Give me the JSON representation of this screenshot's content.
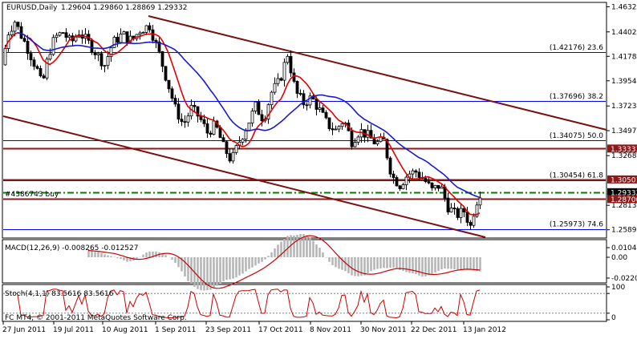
{
  "header": {
    "symbol": "EURUSD,Daily",
    "ohlc": "1.29604 1.29860 1.28869 1.29332"
  },
  "fib_labels": [
    {
      "text": "(1.42176) 23.6",
      "price": 1.4218
    },
    {
      "text": "(1.37696) 38.2",
      "price": 1.377
    },
    {
      "text": "(1.34075) 50.0",
      "price": 1.3408
    },
    {
      "text": "(1.30454) 61.8",
      "price": 1.3045
    },
    {
      "text": "(1.25973) 74.6",
      "price": 1.2597
    }
  ],
  "order_label": "#4386743 buy",
  "price_axis": {
    "ticks": [
      "1.46323",
      "1.44020",
      "1.41780",
      "1.39540",
      "1.37230",
      "1.34970",
      "1.32680",
      "1.28130",
      "1.25890"
    ],
    "tick_prices": [
      1.46323,
      1.4402,
      1.4178,
      1.3954,
      1.3723,
      1.3497,
      1.3268,
      1.2813,
      1.2589
    ],
    "price_min": 1.255,
    "price_max": 1.465,
    "badges": [
      {
        "text": "1.33333",
        "price": 1.3333,
        "bg": "#8b1a1a",
        "fg": "#ffffff"
      },
      {
        "text": "1.30501",
        "price": 1.305,
        "bg": "#8b1a1a",
        "fg": "#ffffff"
      },
      {
        "text": "1.29332",
        "price": 1.2933,
        "bg": "#000000",
        "fg": "#ffffff"
      },
      {
        "text": "1.28700",
        "price": 1.287,
        "bg": "#8b1a1a",
        "fg": "#ffffff"
      }
    ]
  },
  "macd": {
    "label": "MACD(12,26,9) -0.008265 -0.012527",
    "ticks": [
      "0.010467",
      "0.00",
      "-0.0220"
    ]
  },
  "stoch": {
    "label": "Stoch(4,1,1) 83.5616 83.5616",
    "ticks": [
      "100",
      "80",
      "20",
      "0"
    ]
  },
  "copyright": "FC MT4, © 2001-2011 MetaQuotes Software Corp.",
  "time_axis": [
    "27 Jun 2011",
    "19 Jul 2011",
    "10 Aug 2011",
    "1 Sep 2011",
    "23 Sep 2011",
    "17 Oct 2011",
    "8 Nov 2011",
    "30 Nov 2011",
    "22 Dec 2011",
    "13 Jan 2012"
  ],
  "colors": {
    "candle": "#000000",
    "ma_fast": "#e00000",
    "ma_slow": "#1a1acd",
    "channel": "#7a1010",
    "fib": "#0000ff",
    "order_line": "#008000",
    "macd_hist": "#b4b4b4",
    "macd_signal": "#cc0000",
    "stoch_main": "#cc0000",
    "level_line": "#8b1a1a"
  }
}
